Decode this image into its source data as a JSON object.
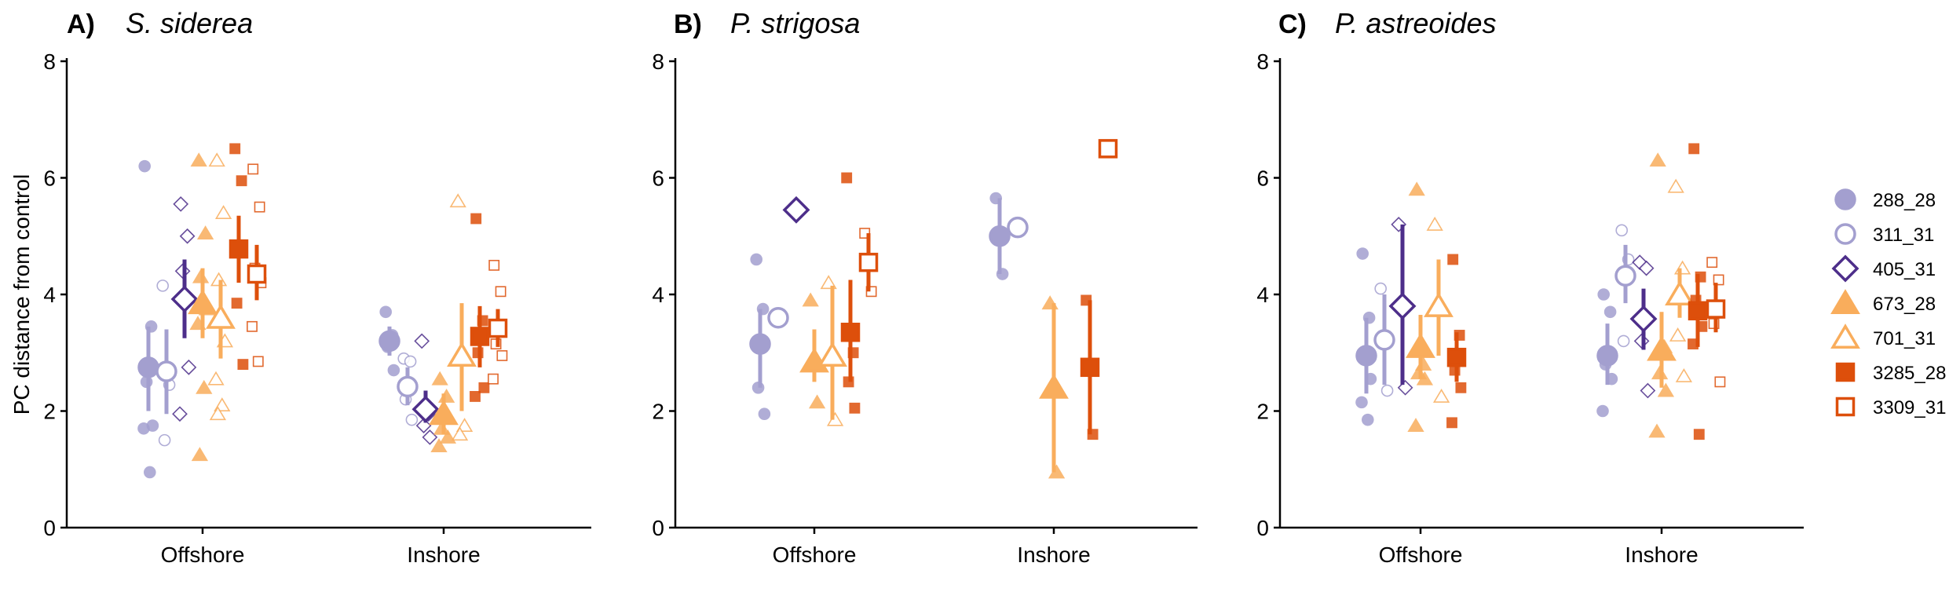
{
  "colors": {
    "288_28": "#a39fcf",
    "311_31": "#a39fcf",
    "405_31": "#4d2e8a",
    "673_28": "#f9ad5c",
    "701_31": "#f9ad5c",
    "3285_28": "#dd4f0b",
    "3309_31": "#dd4f0b"
  },
  "legend": {
    "position": "right",
    "items": [
      {
        "genotype": "288_28",
        "shape": "circle",
        "filled": true
      },
      {
        "genotype": "311_31",
        "shape": "circle",
        "filled": false
      },
      {
        "genotype": "405_31",
        "shape": "diamond",
        "filled": false
      },
      {
        "genotype": "673_28",
        "shape": "triangle",
        "filled": true
      },
      {
        "genotype": "701_31",
        "shape": "triangle",
        "filled": false
      },
      {
        "genotype": "3285_28",
        "shape": "square",
        "filled": true
      },
      {
        "genotype": "3309_31",
        "shape": "square",
        "filled": false
      }
    ]
  },
  "chart_data": [
    {
      "type": "scatter",
      "panel": "A)",
      "title": "S. siderea",
      "ylabel": "PC distance from control",
      "xlabel": "",
      "categories": [
        "Offshore",
        "Inshore"
      ],
      "ylim": [
        0,
        8
      ],
      "yticks": [
        0,
        2,
        4,
        6,
        8
      ],
      "grid": false,
      "groups": [
        {
          "site": "Offshore",
          "genotype": "288_28",
          "mean": 2.75,
          "lo": 2.0,
          "hi": 3.45,
          "points": [
            6.2,
            3.45,
            2.5,
            1.75,
            1.7,
            0.95
          ]
        },
        {
          "site": "Offshore",
          "genotype": "311_31",
          "mean": 2.68,
          "lo": 1.95,
          "hi": 3.4,
          "points": [
            4.15,
            2.45,
            1.5
          ]
        },
        {
          "site": "Offshore",
          "genotype": "405_31",
          "mean": 3.92,
          "lo": 3.25,
          "hi": 4.6,
          "points": [
            5.55,
            5.0,
            4.4,
            2.75,
            1.95
          ]
        },
        {
          "site": "Offshore",
          "genotype": "673_28",
          "mean": 3.85,
          "lo": 3.25,
          "hi": 4.45,
          "points": [
            6.3,
            5.05,
            4.3,
            3.75,
            3.5,
            2.4,
            1.25
          ]
        },
        {
          "site": "Offshore",
          "genotype": "701_31",
          "mean": 3.6,
          "lo": 2.9,
          "hi": 4.25,
          "points": [
            6.3,
            5.4,
            4.25,
            3.2,
            2.55,
            2.1,
            1.95
          ]
        },
        {
          "site": "Offshore",
          "genotype": "3285_28",
          "mean": 4.78,
          "lo": 4.2,
          "hi": 5.35,
          "points": [
            6.5,
            5.95,
            3.85,
            2.8
          ]
        },
        {
          "site": "Offshore",
          "genotype": "3309_31",
          "mean": 4.35,
          "lo": 3.9,
          "hi": 4.85,
          "points": [
            6.15,
            5.5,
            4.45,
            4.2,
            3.45,
            2.85
          ]
        },
        {
          "site": "Inshore",
          "genotype": "288_28",
          "mean": 3.2,
          "lo": 2.95,
          "hi": 3.45,
          "points": [
            3.7,
            3.3,
            3.1,
            2.7
          ]
        },
        {
          "site": "Inshore",
          "genotype": "311_31",
          "mean": 2.42,
          "lo": 2.1,
          "hi": 2.75,
          "points": [
            2.9,
            2.85,
            2.2,
            1.85
          ]
        },
        {
          "site": "Inshore",
          "genotype": "405_31",
          "mean": 2.03,
          "lo": 1.8,
          "hi": 2.35,
          "points": [
            3.2,
            1.95,
            1.75,
            1.55
          ]
        },
        {
          "site": "Inshore",
          "genotype": "673_28",
          "mean": 1.95,
          "lo": 1.6,
          "hi": 2.3,
          "points": [
            2.55,
            2.25,
            1.7,
            1.55,
            1.4
          ]
        },
        {
          "site": "Inshore",
          "genotype": "701_31",
          "mean": 2.95,
          "lo": 2.0,
          "hi": 3.85,
          "points": [
            5.6,
            1.75,
            1.6
          ]
        },
        {
          "site": "Inshore",
          "genotype": "3285_28",
          "mean": 3.28,
          "lo": 2.75,
          "hi": 3.8,
          "points": [
            5.3,
            3.55,
            3.0,
            2.4,
            2.25
          ]
        },
        {
          "site": "Inshore",
          "genotype": "3309_31",
          "mean": 3.42,
          "lo": 3.1,
          "hi": 3.75,
          "points": [
            4.5,
            4.05,
            3.15,
            2.95,
            2.55
          ]
        }
      ]
    },
    {
      "type": "scatter",
      "panel": "B)",
      "title": "P. strigosa",
      "ylabel": "",
      "xlabel": "",
      "categories": [
        "Offshore",
        "Inshore"
      ],
      "ylim": [
        0,
        8
      ],
      "yticks": [
        0,
        2,
        4,
        6,
        8
      ],
      "grid": false,
      "groups": [
        {
          "site": "Offshore",
          "genotype": "288_28",
          "mean": 3.15,
          "lo": 2.4,
          "hi": 3.75,
          "points": [
            4.6,
            3.75,
            2.4,
            1.95
          ]
        },
        {
          "site": "Offshore",
          "genotype": "311_31",
          "mean": 3.6,
          "lo": null,
          "hi": null,
          "points": []
        },
        {
          "site": "Offshore",
          "genotype": "405_31",
          "mean": 5.45,
          "lo": null,
          "hi": null,
          "points": []
        },
        {
          "site": "Offshore",
          "genotype": "673_28",
          "mean": 2.85,
          "lo": 2.5,
          "hi": 3.4,
          "points": [
            3.9,
            2.15
          ]
        },
        {
          "site": "Offshore",
          "genotype": "701_31",
          "mean": 2.95,
          "lo": 1.85,
          "hi": 4.15,
          "points": [
            4.2,
            1.85
          ]
        },
        {
          "site": "Offshore",
          "genotype": "3285_28",
          "mean": 3.35,
          "lo": 2.5,
          "hi": 4.25,
          "points": [
            6.0,
            3.0,
            2.5,
            2.05
          ]
        },
        {
          "site": "Offshore",
          "genotype": "3309_31",
          "mean": 4.55,
          "lo": 4.05,
          "hi": 5.05,
          "points": [
            5.05,
            4.05
          ]
        },
        {
          "site": "Inshore",
          "genotype": "288_28",
          "mean": 5.0,
          "lo": 4.35,
          "hi": 5.65,
          "points": [
            5.65,
            4.35
          ]
        },
        {
          "site": "Inshore",
          "genotype": "311_31",
          "mean": 5.15,
          "lo": null,
          "hi": null,
          "points": []
        },
        {
          "site": "Inshore",
          "genotype": "673_28",
          "mean": 2.4,
          "lo": 0.95,
          "hi": 3.85,
          "points": [
            3.85,
            0.95
          ]
        },
        {
          "site": "Inshore",
          "genotype": "3285_28",
          "mean": 2.75,
          "lo": 1.6,
          "hi": 3.9,
          "points": [
            3.9,
            1.6
          ]
        },
        {
          "site": "Inshore",
          "genotype": "3309_31",
          "mean": 6.5,
          "lo": null,
          "hi": null,
          "points": []
        }
      ]
    },
    {
      "type": "scatter",
      "panel": "C)",
      "title": "P. astreoides",
      "ylabel": "",
      "xlabel": "",
      "categories": [
        "Offshore",
        "Inshore"
      ],
      "ylim": [
        0,
        8
      ],
      "yticks": [
        0,
        2,
        4,
        6,
        8
      ],
      "grid": false,
      "groups": [
        {
          "site": "Offshore",
          "genotype": "288_28",
          "mean": 2.95,
          "lo": 2.3,
          "hi": 3.6,
          "points": [
            4.7,
            3.6,
            2.9,
            2.55,
            2.15,
            1.85
          ]
        },
        {
          "site": "Offshore",
          "genotype": "311_31",
          "mean": 3.22,
          "lo": 2.45,
          "hi": 4.0,
          "points": [
            4.1,
            2.35
          ]
        },
        {
          "site": "Offshore",
          "genotype": "405_31",
          "mean": 3.8,
          "lo": 2.45,
          "hi": 5.2,
          "points": [
            5.2,
            2.4
          ]
        },
        {
          "site": "Offshore",
          "genotype": "673_28",
          "mean": 3.1,
          "lo": 2.55,
          "hi": 3.65,
          "points": [
            5.8,
            2.8,
            2.65,
            2.55,
            1.75
          ]
        },
        {
          "site": "Offshore",
          "genotype": "701_31",
          "mean": 3.8,
          "lo": 2.95,
          "hi": 4.6,
          "points": [
            5.2,
            2.25
          ]
        },
        {
          "site": "Offshore",
          "genotype": "3285_28",
          "mean": 2.92,
          "lo": 2.5,
          "hi": 3.35,
          "points": [
            4.6,
            3.3,
            2.7,
            2.4,
            1.8
          ]
        },
        {
          "site": "Inshore",
          "genotype": "288_28",
          "mean": 2.95,
          "lo": 2.45,
          "hi": 3.5,
          "points": [
            4.0,
            3.7,
            2.8,
            2.55,
            2.0
          ]
        },
        {
          "site": "Inshore",
          "genotype": "311_31",
          "mean": 4.32,
          "lo": 3.85,
          "hi": 4.85,
          "points": [
            5.1,
            4.6,
            3.2
          ]
        },
        {
          "site": "Inshore",
          "genotype": "405_31",
          "mean": 3.58,
          "lo": 3.05,
          "hi": 4.1,
          "points": [
            4.55,
            4.45,
            3.2,
            2.35
          ]
        },
        {
          "site": "Inshore",
          "genotype": "673_28",
          "mean": 3.05,
          "lo": 2.4,
          "hi": 3.7,
          "points": [
            6.3,
            3.1,
            2.65,
            2.35,
            1.65
          ]
        },
        {
          "site": "Inshore",
          "genotype": "701_31",
          "mean": 4.0,
          "lo": 3.6,
          "hi": 4.45,
          "points": [
            5.85,
            4.45,
            3.3,
            2.6
          ]
        },
        {
          "site": "Inshore",
          "genotype": "3285_28",
          "mean": 3.72,
          "lo": 3.1,
          "hi": 4.35,
          "points": [
            6.5,
            4.3,
            3.9,
            3.45,
            3.15,
            1.6
          ]
        },
        {
          "site": "Inshore",
          "genotype": "3309_31",
          "mean": 3.75,
          "lo": 3.35,
          "hi": 4.2,
          "points": [
            4.55,
            4.25,
            3.5,
            2.5
          ]
        }
      ]
    }
  ]
}
